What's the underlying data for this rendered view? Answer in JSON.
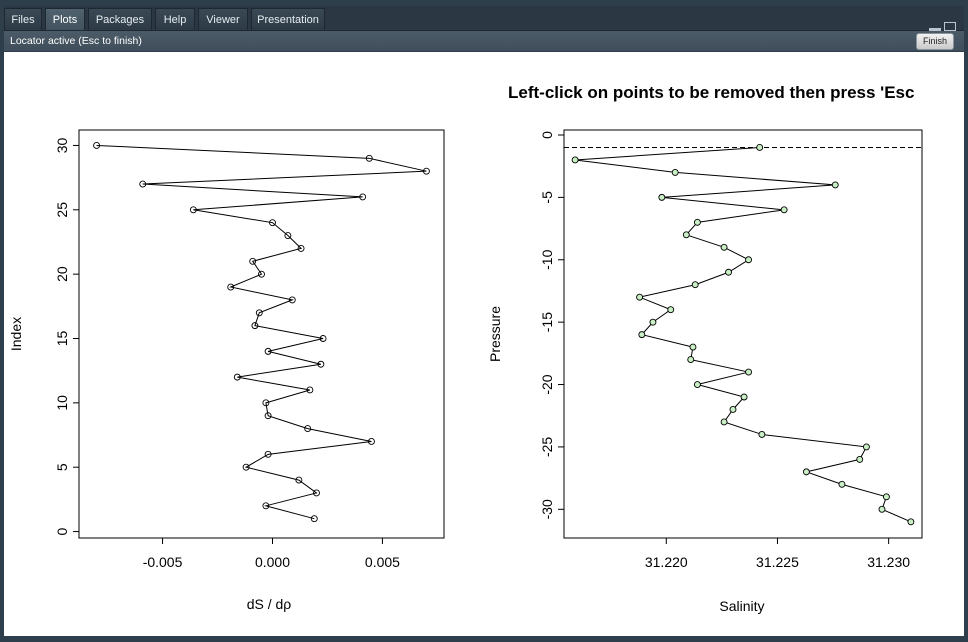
{
  "tabs": [
    {
      "label": "Files",
      "active": false
    },
    {
      "label": "Plots",
      "active": true
    },
    {
      "label": "Packages",
      "active": false
    },
    {
      "label": "Help",
      "active": false
    },
    {
      "label": "Viewer",
      "active": false
    },
    {
      "label": "Presentation",
      "active": false
    }
  ],
  "toolbar": {
    "status": "Locator active (Esc to finish)",
    "finish_label": "Finish"
  },
  "colors": {
    "point_fill_right": "#c9efc4",
    "window_bg": "#2f3e4b"
  },
  "chart_data": [
    {
      "type": "line",
      "title": "",
      "xlabel": "dS / dρ",
      "ylabel": "Index",
      "xlim": [
        -0.0088,
        0.0078
      ],
      "ylim": [
        -0.5,
        31.2
      ],
      "xticks": [
        -0.005,
        0.0,
        0.005
      ],
      "xtick_labels": [
        "-0.005",
        "0.000",
        "0.005"
      ],
      "yticks": [
        0,
        5,
        10,
        15,
        20,
        25,
        30
      ],
      "ytick_labels": [
        "0",
        "5",
        "10",
        "15",
        "20",
        "25",
        "30"
      ],
      "markers": "open-circle",
      "series": [
        {
          "x": [
            0.0019,
            -0.0003,
            0.002,
            0.0012,
            -0.0012,
            -0.0002,
            0.0045,
            0.0016,
            -0.0002,
            -0.0003,
            0.0017,
            -0.0016,
            0.0022,
            -0.0002,
            0.0023,
            -0.0008,
            -0.0006,
            0.0009,
            -0.0019,
            -0.0005,
            -0.0009,
            0.0013,
            0.0007,
            0.0,
            -0.0036,
            0.0041,
            -0.0059,
            0.007,
            0.0044,
            -0.008
          ],
          "y": [
            1,
            2,
            3,
            4,
            5,
            6,
            7,
            8,
            9,
            10,
            11,
            12,
            13,
            14,
            15,
            16,
            17,
            18,
            19,
            20,
            21,
            22,
            23,
            24,
            25,
            26,
            27,
            28,
            29,
            30
          ]
        }
      ]
    },
    {
      "type": "line",
      "title": "Left-click on points to be removed then press 'Esc",
      "xlabel": "Salinity",
      "ylabel": "Pressure",
      "xlim": [
        31.2154,
        31.2315
      ],
      "ylim": [
        -32.3,
        0.4
      ],
      "xticks": [
        31.22,
        31.225,
        31.23
      ],
      "xtick_labels": [
        "31.220",
        "31.225",
        "31.230"
      ],
      "yticks": [
        0,
        -5,
        -10,
        -15,
        -20,
        -25,
        -30
      ],
      "ytick_labels": [
        "0",
        "-5",
        "-10",
        "-15",
        "-20",
        "-25",
        "-30"
      ],
      "reference_line": {
        "y": -1,
        "style": "dashed"
      },
      "markers": "filled-circle-light-green",
      "series": [
        {
          "x": [
            31.2242,
            31.2159,
            31.2204,
            31.2276,
            31.2198,
            31.2253,
            31.2214,
            31.2209,
            31.2226,
            31.2237,
            31.2228,
            31.2213,
            31.2188,
            31.2202,
            31.2194,
            31.2189,
            31.2212,
            31.2211,
            31.2237,
            31.2214,
            31.2235,
            31.223,
            31.2226,
            31.2243,
            31.229,
            31.2287,
            31.2263,
            31.2279,
            31.2299,
            31.2297,
            31.231
          ],
          "y": [
            -1,
            -2,
            -3,
            -4,
            -5,
            -6,
            -7,
            -8,
            -9,
            -10,
            -11,
            -12,
            -13,
            -14,
            -15,
            -16,
            -17,
            -18,
            -19,
            -20,
            -21,
            -22,
            -23,
            -24,
            -25,
            -26,
            -27,
            -28,
            -29,
            -30,
            -31
          ]
        }
      ]
    }
  ]
}
